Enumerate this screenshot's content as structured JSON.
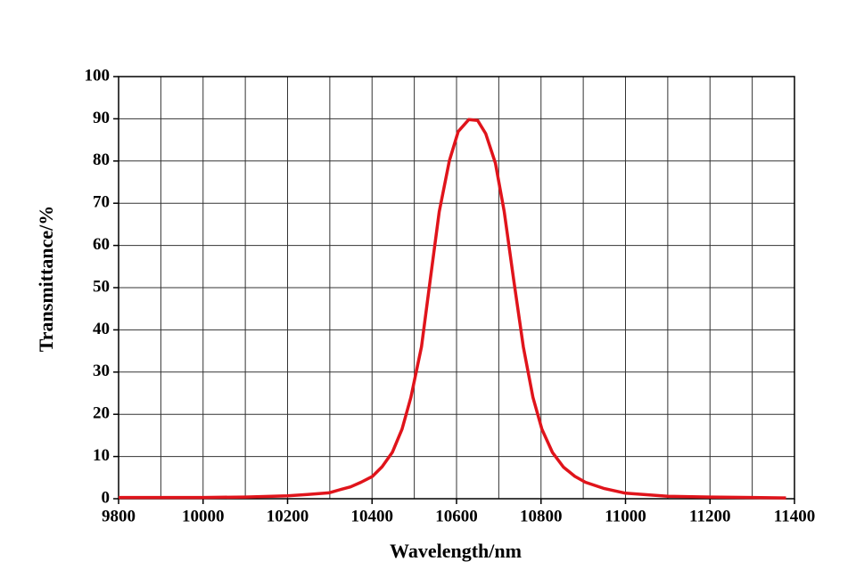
{
  "chart_data": {
    "type": "line",
    "x_label": "Wavelength/nm",
    "y_label": "Transmittance/%",
    "x": [
      9800,
      9900,
      10000,
      10100,
      10200,
      10247,
      10298,
      10323,
      10349,
      10374,
      10401,
      10424,
      10448,
      10471,
      10492,
      10517,
      10538,
      10559,
      10583,
      10604,
      10629,
      10650,
      10669,
      10692,
      10713,
      10735,
      10758,
      10781,
      10802,
      10827,
      10853,
      10880,
      10905,
      10950,
      11000,
      11100,
      11200,
      11300,
      11380
    ],
    "series": [
      {
        "color": "#e0141b",
        "values": [
          0.3,
          0.3,
          0.3,
          0.4,
          0.7,
          1.0,
          1.4,
          2.1,
          2.8,
          3.9,
          5.3,
          7.6,
          11,
          16.5,
          24,
          36,
          52,
          68,
          80,
          87,
          89.8,
          89.6,
          86.5,
          79.5,
          68,
          52,
          36,
          24,
          16.5,
          11,
          7.5,
          5.3,
          3.9,
          2.4,
          1.3,
          0.6,
          0.4,
          0.3,
          0.2
        ]
      }
    ],
    "xlim": [
      9800,
      11400
    ],
    "ylim": [
      0,
      100
    ],
    "xticks": [
      9800,
      10000,
      10200,
      10400,
      10600,
      10800,
      11000,
      11200,
      11400
    ],
    "x_minor_ticks": [
      9900,
      10100,
      10300,
      10500,
      10700,
      10900,
      11100,
      11300
    ],
    "yticks": [
      0,
      10,
      20,
      30,
      40,
      50,
      60,
      70,
      80,
      90,
      100
    ],
    "grid": true
  }
}
